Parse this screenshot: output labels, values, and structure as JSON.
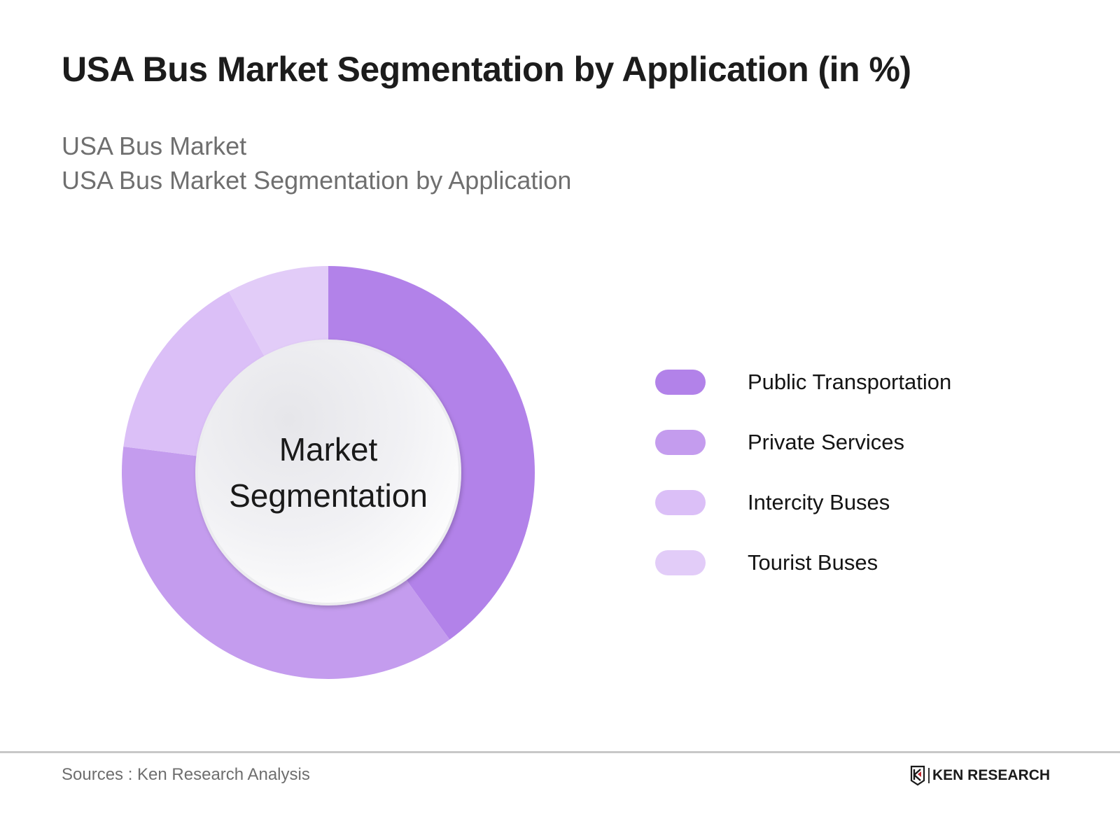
{
  "header": {
    "title": "USA Bus Market Segmentation by Application (in %)",
    "subtitle_line1": "USA Bus Market",
    "subtitle_line2": "USA Bus Market Segmentation by Application"
  },
  "center_label": {
    "line1": "Market",
    "line2": "Segmentation"
  },
  "legend": {
    "items": [
      {
        "label": "Public Transportation",
        "color": "#b282e9"
      },
      {
        "label": "Private Services",
        "color": "#c49cee"
      },
      {
        "label": "Intercity Buses",
        "color": "#dbbff7"
      },
      {
        "label": "Tourist Buses",
        "color": "#e2ccf8"
      }
    ]
  },
  "footer": {
    "sources": "Sources : Ken Research Analysis",
    "logo_text": "KEN RESEARCH"
  },
  "chart_data": {
    "type": "pie",
    "variant": "donut",
    "title": "USA Bus Market Segmentation by Application (in %)",
    "subtitle": [
      "USA Bus Market",
      "USA Bus Market Segmentation by Application"
    ],
    "center_text": "Market Segmentation",
    "categories": [
      "Public Transportation",
      "Private Services",
      "Intercity Buses",
      "Tourist Buses"
    ],
    "values": [
      40,
      37,
      15,
      8
    ],
    "colors": [
      "#b282e9",
      "#c49cee",
      "#dbbff7",
      "#e2ccf8"
    ],
    "start_angle_deg": 0,
    "direction": "clockwise",
    "data_labels": false,
    "legend_position": "right",
    "source": "Sources : Ken Research Analysis"
  }
}
